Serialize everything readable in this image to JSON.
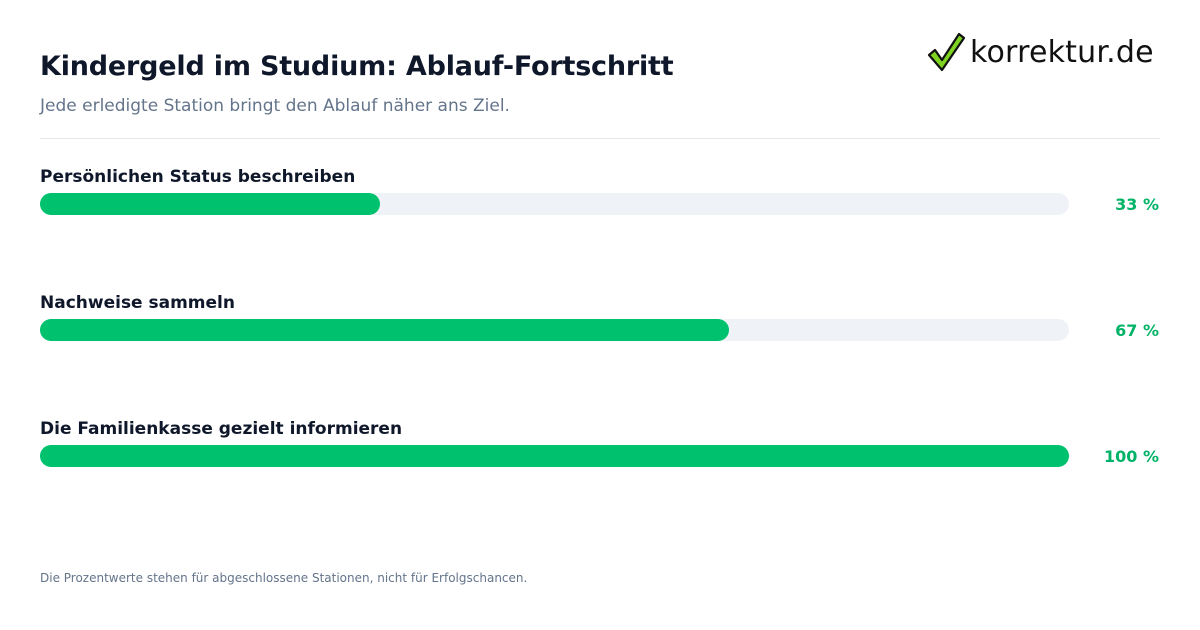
{
  "title": "Kindergeld im Studium: Ablauf-Fortschritt",
  "subtitle": "Jede erledigte Station bringt den Ablauf näher ans Ziel.",
  "logo": {
    "text": "korrektur.de",
    "icon": "checkmark-icon",
    "check_color": "#7ed321"
  },
  "colors": {
    "fill": "#00c16e",
    "track": "#eff3f8",
    "percent_text": "#00b366"
  },
  "footnote": "Die Prozentwerte stehen für abgeschlossene Stationen, nicht für Erfolgschancen.",
  "chart_data": {
    "type": "bar",
    "orientation": "horizontal",
    "categories": [
      "Persönlichen Status beschreiben",
      "Nachweise sammeln",
      "Die Familienkasse gezielt informieren"
    ],
    "values": [
      33,
      67,
      100
    ],
    "value_labels": [
      "33 %",
      "67 %",
      "100 %"
    ],
    "xlim": [
      0,
      100
    ],
    "grid": false
  }
}
